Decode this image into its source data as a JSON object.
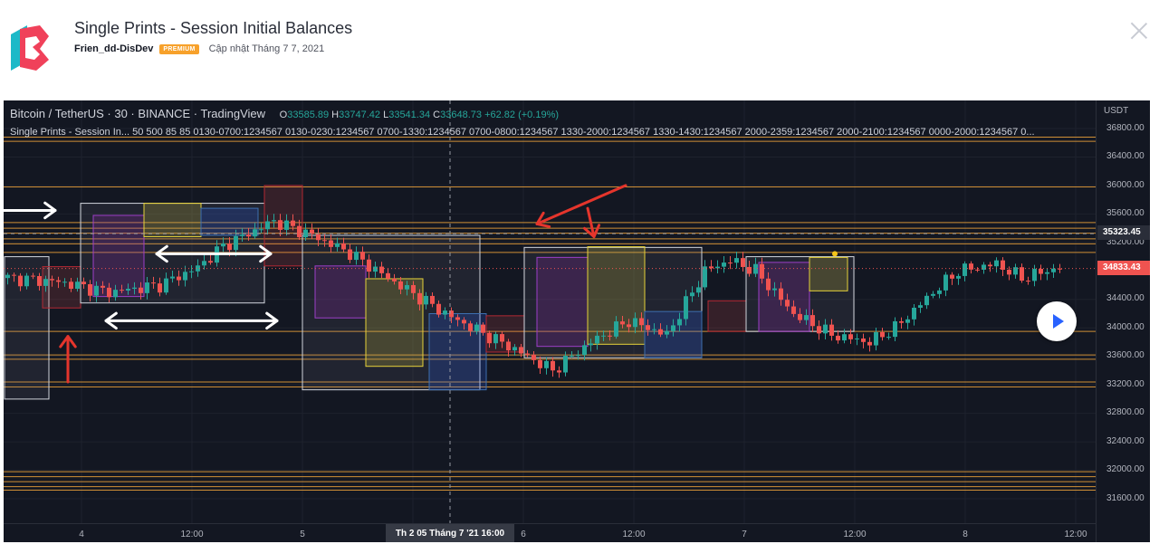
{
  "header": {
    "title": "Single Prints - Session Initial Balances",
    "author": "Frien_dd-DisDev",
    "badge": "PREMIUM",
    "updated": "Cập nhật Tháng 7 7, 2021"
  },
  "chart": {
    "symbol_line": "Bitcoin / TetherUS · 30 · BINANCE · TradingView",
    "ohlc": {
      "o_key": "O",
      "o": "33585.89",
      "h_key": "H",
      "h": "33747.42",
      "l_key": "L",
      "l": "33541.34",
      "c_key": "C",
      "c": "33648.73",
      "change": "+62.82 (+0.19%)"
    },
    "indicator_line": "Single Prints - Session In...   50 500 85 85 0130-0700:1234567 0130-0230:1234567 0700-1330:1234567 0700-0800:1234567 1330-2000:1234567 1330-1430:1234567 2000-2359:1234567 2000-2100:1234567 0000-2000:1234567 0...",
    "currency": "USDT",
    "price_ticks": [
      "36800.00",
      "36400.00",
      "36000.00",
      "35600.00",
      "35200.00",
      "34400.00",
      "34000.00",
      "33600.00",
      "33200.00",
      "32800.00",
      "32400.00",
      "32000.00",
      "31600.00"
    ],
    "tag_crosshair": "35323.45",
    "tag_last": "34833.43",
    "time_ticks": [
      "4",
      "12:00",
      "5",
      "6",
      "12:00",
      "7",
      "12:00",
      "8",
      "12:00"
    ],
    "crosshair_time": "Th 2 05 Tháng 7 '21    16:00",
    "colors": {
      "background": "#131722",
      "up": "#26a69a",
      "down": "#ef5350",
      "level": "#f0a53a",
      "annotation_red": "#e5352c"
    }
  },
  "chart_data": {
    "type": "candlestick",
    "symbol": "BTCUSDT",
    "interval": "30",
    "exchange": "BINANCE",
    "ylim": [
      31400,
      36950
    ],
    "price_axis_labels": [
      36800,
      36400,
      36000,
      35600,
      35200,
      34400,
      34000,
      33600,
      33200,
      32800,
      32400,
      32000,
      31600
    ],
    "time_axis_labels": [
      "4",
      "12:00",
      "5",
      "6",
      "12:00",
      "7",
      "12:00",
      "8",
      "12:00"
    ],
    "last_ohlc": {
      "open": 33585.89,
      "high": 33747.42,
      "low": 33541.34,
      "close": 33648.73,
      "change": 62.82,
      "change_pct": 0.19
    },
    "crosshair_price": 35323.45,
    "last_price": 34833.43,
    "key_levels": [
      36680,
      36620,
      35980,
      35480,
      35400,
      35330,
      35250,
      35180,
      35060,
      33950,
      33620,
      33560,
      33240,
      33170,
      31980,
      31910,
      31840,
      31770,
      31720
    ],
    "path_points": [
      [
        0,
        34700
      ],
      [
        8,
        34650
      ],
      [
        16,
        34500
      ],
      [
        24,
        34600
      ],
      [
        30,
        34850
      ],
      [
        34,
        35150
      ],
      [
        42,
        35500
      ],
      [
        48,
        35300
      ],
      [
        54,
        35050
      ],
      [
        60,
        34700
      ],
      [
        70,
        34150
      ],
      [
        80,
        33700
      ],
      [
        86,
        33400
      ],
      [
        92,
        33800
      ],
      [
        98,
        34100
      ],
      [
        104,
        33900
      ],
      [
        110,
        34800
      ],
      [
        114,
        34950
      ],
      [
        118,
        34800
      ],
      [
        124,
        34200
      ],
      [
        130,
        33900
      ],
      [
        136,
        33800
      ],
      [
        140,
        34000
      ],
      [
        146,
        34500
      ],
      [
        150,
        34800
      ],
      [
        156,
        34900
      ],
      [
        160,
        34700
      ],
      [
        166,
        34850
      ]
    ],
    "boxes": [
      {
        "type": "ib",
        "i0": 0,
        "i1": 7,
        "top": 35000,
        "bottom": 33000
      },
      {
        "type": "session",
        "i0": 6,
        "i1": 12,
        "top": 34860,
        "bottom": 34280
      },
      {
        "type": "ib",
        "i0": 12,
        "i1": 41,
        "top": 35750,
        "bottom": 34350
      },
      {
        "type": "purple",
        "i0": 14,
        "i1": 22,
        "top": 35580,
        "bottom": 34440
      },
      {
        "type": "yellow",
        "i0": 22,
        "i1": 31,
        "top": 35750,
        "bottom": 35280
      },
      {
        "type": "blue",
        "i0": 31,
        "i1": 40,
        "top": 35680,
        "bottom": 35300
      },
      {
        "type": "session",
        "i0": 41,
        "i1": 47,
        "top": 36000,
        "bottom": 34870
      },
      {
        "type": "ib",
        "i0": 47,
        "i1": 75,
        "top": 35300,
        "bottom": 33130
      },
      {
        "type": "purple",
        "i0": 49,
        "i1": 57,
        "top": 34870,
        "bottom": 34140
      },
      {
        "type": "yellow",
        "i0": 57,
        "i1": 66,
        "top": 34690,
        "bottom": 33460
      },
      {
        "type": "blue",
        "i0": 67,
        "i1": 76,
        "top": 34200,
        "bottom": 33130
      },
      {
        "type": "session",
        "i0": 76,
        "i1": 82,
        "top": 34170,
        "bottom": 33660
      },
      {
        "type": "ib",
        "i0": 82,
        "i1": 110,
        "top": 35130,
        "bottom": 33580
      },
      {
        "type": "purple",
        "i0": 84,
        "i1": 92,
        "top": 34990,
        "bottom": 33740
      },
      {
        "type": "yellow",
        "i0": 92,
        "i1": 101,
        "top": 35140,
        "bottom": 33770
      },
      {
        "type": "blue",
        "i0": 101,
        "i1": 110,
        "top": 34230,
        "bottom": 33580
      },
      {
        "type": "session",
        "i0": 111,
        "i1": 117,
        "top": 34380,
        "bottom": 33950
      },
      {
        "type": "ib",
        "i0": 117,
        "i1": 134,
        "top": 35000,
        "bottom": 33950
      },
      {
        "type": "purple",
        "i0": 119,
        "i1": 127,
        "top": 34920,
        "bottom": 33950
      },
      {
        "type": "yellow",
        "i0": 127,
        "i1": 133,
        "top": 34990,
        "bottom": 34520
      }
    ],
    "annotations": [
      {
        "type": "arrow-right",
        "color": "white",
        "from": [
          -4,
          35650
        ],
        "to": [
          8,
          35650
        ]
      },
      {
        "type": "double-arrow",
        "color": "white",
        "from": [
          24,
          35040
        ],
        "to": [
          42,
          35040
        ]
      },
      {
        "type": "double-arrow",
        "color": "white",
        "from": [
          16,
          34100
        ],
        "to": [
          43,
          34100
        ]
      },
      {
        "type": "arrow-up",
        "color": "red",
        "from": [
          10,
          33240
        ],
        "to": [
          10,
          33880
        ]
      },
      {
        "type": "arrow",
        "color": "red",
        "from": [
          98,
          36000
        ],
        "to": [
          84,
          35460
        ]
      },
      {
        "type": "arrow",
        "color": "red",
        "from": [
          92,
          35680
        ],
        "to": [
          93,
          35280
        ]
      }
    ]
  }
}
